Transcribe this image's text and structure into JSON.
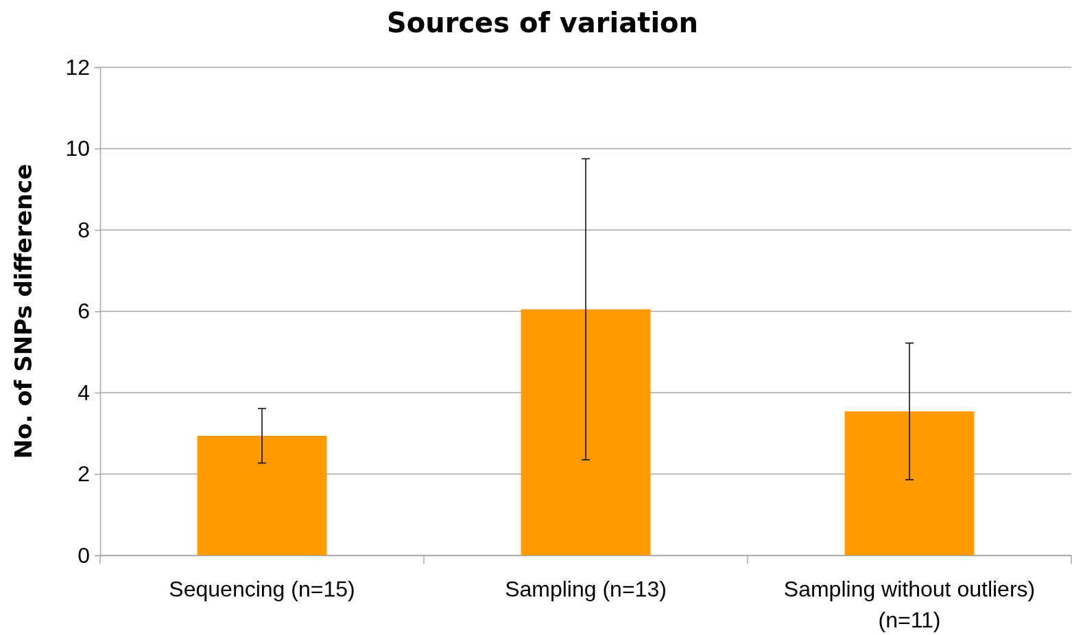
{
  "chart_data": {
    "type": "bar",
    "title": "Sources of variation",
    "ylabel": "No. of SNPs difference",
    "categories": [
      "Sequencing (n=15)",
      "Sampling (n=13)",
      "Sampling without outliers) (n=11)"
    ],
    "values": [
      2.94,
      6.05,
      3.54
    ],
    "errors": [
      0.67,
      3.7,
      1.68
    ],
    "color": "#ff9900",
    "ylim": [
      0,
      12
    ],
    "yticks": [
      0,
      2,
      4,
      6,
      8,
      10,
      12
    ],
    "grid": "y"
  }
}
